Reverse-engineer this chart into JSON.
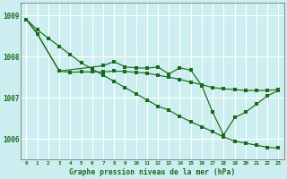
{
  "title": "Graphe pression niveau de la mer (hPa)",
  "bg_color": "#cceef0",
  "grid_color": "#ffffff",
  "line_color": "#1a6b1a",
  "xlim": [
    -0.5,
    23.5
  ],
  "ylim": [
    1005.5,
    1009.3
  ],
  "yticks": [
    1006,
    1007,
    1008,
    1009
  ],
  "xticks": [
    0,
    1,
    2,
    3,
    4,
    5,
    6,
    7,
    8,
    9,
    10,
    11,
    12,
    13,
    14,
    15,
    16,
    17,
    18,
    19,
    20,
    21,
    22,
    23
  ],
  "series1": {
    "x": [
      0,
      1,
      2,
      3,
      4,
      5,
      6,
      7,
      8,
      9,
      10,
      11,
      12,
      13,
      14,
      15,
      16,
      17,
      18,
      19,
      20,
      21,
      22,
      23
    ],
    "y": [
      1008.9,
      1008.65,
      1008.45,
      1008.25,
      1008.05,
      1007.85,
      1007.7,
      1007.55,
      1007.4,
      1007.25,
      1007.1,
      1006.95,
      1006.8,
      1006.7,
      1006.55,
      1006.42,
      1006.3,
      1006.18,
      1006.05,
      1005.95,
      1005.9,
      1005.85,
      1005.8,
      1005.78
    ]
  },
  "series2": {
    "x": [
      0,
      1,
      3,
      4,
      5,
      6,
      7,
      8,
      9,
      10,
      11,
      12,
      13,
      14,
      15,
      16,
      17,
      18,
      19,
      20,
      21,
      22,
      23
    ],
    "y": [
      1008.9,
      1008.55,
      1007.65,
      1007.62,
      1007.63,
      1007.63,
      1007.63,
      1007.65,
      1007.64,
      1007.62,
      1007.6,
      1007.55,
      1007.5,
      1007.45,
      1007.38,
      1007.32,
      1007.25,
      1007.22,
      1007.2,
      1007.18,
      1007.18,
      1007.18,
      1007.2
    ]
  },
  "series3": {
    "x": [
      0,
      1,
      3,
      7,
      8,
      9,
      10,
      11,
      12,
      13,
      14,
      15,
      16,
      17,
      18,
      19,
      20,
      21,
      22,
      23
    ],
    "y": [
      1008.9,
      1008.55,
      1007.65,
      1007.78,
      1007.88,
      1007.75,
      1007.73,
      1007.72,
      1007.75,
      1007.58,
      1007.73,
      1007.67,
      1007.3,
      1006.65,
      1006.1,
      1006.52,
      1006.65,
      1006.85,
      1007.05,
      1007.18
    ]
  }
}
